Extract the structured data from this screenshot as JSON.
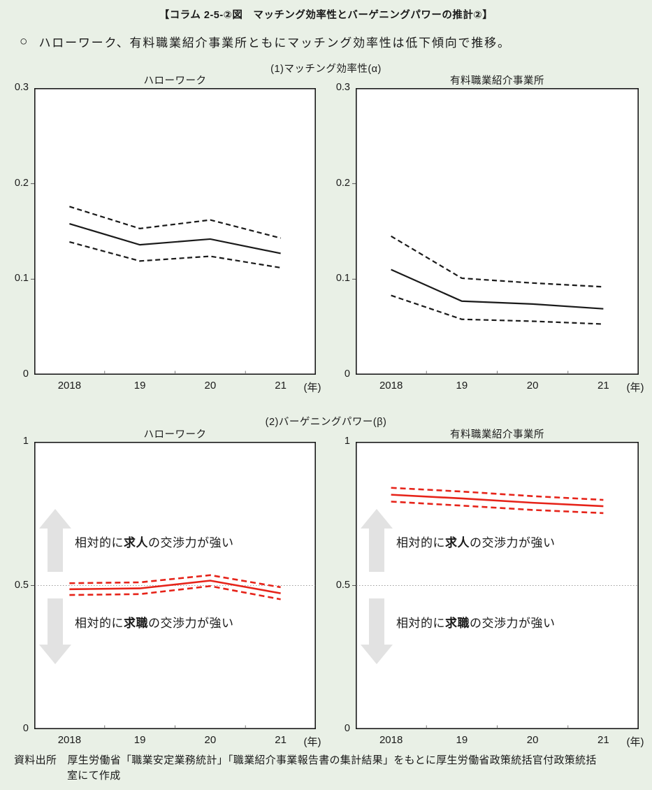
{
  "header": {
    "title": "【コラム 2-5-②図　マッチング効率性とバーゲニングパワーの推計②】",
    "bullet_marker": "○",
    "bullet_text": "ハローワーク、有料職業紹介事業所ともにマッチング効率性は低下傾向で推移。"
  },
  "sections": [
    {
      "label": "(1)マッチング効率性(α)"
    },
    {
      "label": "(2)バーゲニングパワー(β)"
    }
  ],
  "footer": {
    "line1": "資料出所　厚生労働省「職業安定業務統計」「職業紹介事業報告書の集計結果」をもとに厚生労働省政策統括官付政策統括",
    "line2": "室にて作成"
  },
  "colors": {
    "background": "#e9f0e6",
    "line_black": "#1a1a1a",
    "line_red": "#e62319",
    "arrow_gray": "#e2e2e2",
    "reference_gray": "#9c9c9c",
    "plot_background": "#ffffff"
  },
  "chart_data": [
    {
      "type": "line",
      "panel": "(1)",
      "title": "ハローワーク",
      "categories": [
        "2018",
        "19",
        "20",
        "21"
      ],
      "x_axis_unit": "(年)",
      "ylim": [
        0,
        0.3
      ],
      "yticks": [
        "0",
        "0.1",
        "0.2",
        "0.3"
      ],
      "grid": false,
      "series": [
        {
          "name": "estimate",
          "style": "solid",
          "color": "#1a1a1a",
          "values": [
            0.158,
            0.136,
            0.142,
            0.127
          ]
        },
        {
          "name": "upper",
          "style": "dashed",
          "color": "#1a1a1a",
          "values": [
            0.176,
            0.153,
            0.162,
            0.143
          ]
        },
        {
          "name": "lower",
          "style": "dashed",
          "color": "#1a1a1a",
          "values": [
            0.139,
            0.119,
            0.124,
            0.112
          ]
        }
      ]
    },
    {
      "type": "line",
      "panel": "(1)",
      "title": "有料職業紹介事業所",
      "categories": [
        "2018",
        "19",
        "20",
        "21"
      ],
      "x_axis_unit": "(年)",
      "ylim": [
        0,
        0.3
      ],
      "yticks": [
        "0",
        "0.1",
        "0.2",
        "0.3"
      ],
      "grid": false,
      "series": [
        {
          "name": "estimate",
          "style": "solid",
          "color": "#1a1a1a",
          "values": [
            0.11,
            0.077,
            0.074,
            0.069
          ]
        },
        {
          "name": "upper",
          "style": "dashed",
          "color": "#1a1a1a",
          "values": [
            0.145,
            0.101,
            0.096,
            0.092
          ]
        },
        {
          "name": "lower",
          "style": "dashed",
          "color": "#1a1a1a",
          "values": [
            0.083,
            0.058,
            0.056,
            0.053
          ]
        }
      ]
    },
    {
      "type": "line",
      "panel": "(2)",
      "title": "ハローワーク",
      "categories": [
        "2018",
        "19",
        "20",
        "21"
      ],
      "x_axis_unit": "(年)",
      "ylim": [
        0,
        1
      ],
      "yticks": [
        "0",
        "0.5",
        "1"
      ],
      "grid": false,
      "reference_line": 0.5,
      "series": [
        {
          "name": "estimate",
          "style": "solid",
          "color": "#e62319",
          "values": [
            0.487,
            0.49,
            0.517,
            0.473
          ]
        },
        {
          "name": "upper",
          "style": "dashed",
          "color": "#e62319",
          "values": [
            0.508,
            0.511,
            0.536,
            0.494
          ]
        },
        {
          "name": "lower",
          "style": "dashed",
          "color": "#e62319",
          "values": [
            0.467,
            0.47,
            0.498,
            0.452
          ]
        }
      ],
      "annotations": [
        {
          "direction": "up",
          "text_pre": "相対的に",
          "text_bold": "求人",
          "text_post": "の交渉力が強い"
        },
        {
          "direction": "down",
          "text_pre": "相対的に",
          "text_bold": "求職",
          "text_post": "の交渉力が強い"
        }
      ]
    },
    {
      "type": "line",
      "panel": "(2)",
      "title": "有料職業紹介事業所",
      "categories": [
        "2018",
        "19",
        "20",
        "21"
      ],
      "x_axis_unit": "(年)",
      "ylim": [
        0,
        1
      ],
      "yticks": [
        "0",
        "0.5",
        "1"
      ],
      "grid": false,
      "reference_line": 0.5,
      "series": [
        {
          "name": "estimate",
          "style": "solid",
          "color": "#e62319",
          "values": [
            0.816,
            0.803,
            0.788,
            0.776
          ]
        },
        {
          "name": "upper",
          "style": "dashed",
          "color": "#e62319",
          "values": [
            0.84,
            0.827,
            0.811,
            0.798
          ]
        },
        {
          "name": "lower",
          "style": "dashed",
          "color": "#e62319",
          "values": [
            0.792,
            0.778,
            0.763,
            0.752
          ]
        }
      ],
      "annotations": [
        {
          "direction": "up",
          "text_pre": "相対的に",
          "text_bold": "求人",
          "text_post": "の交渉力が強い"
        },
        {
          "direction": "down",
          "text_pre": "相対的に",
          "text_bold": "求職",
          "text_post": "の交渉力が強い"
        }
      ]
    }
  ]
}
